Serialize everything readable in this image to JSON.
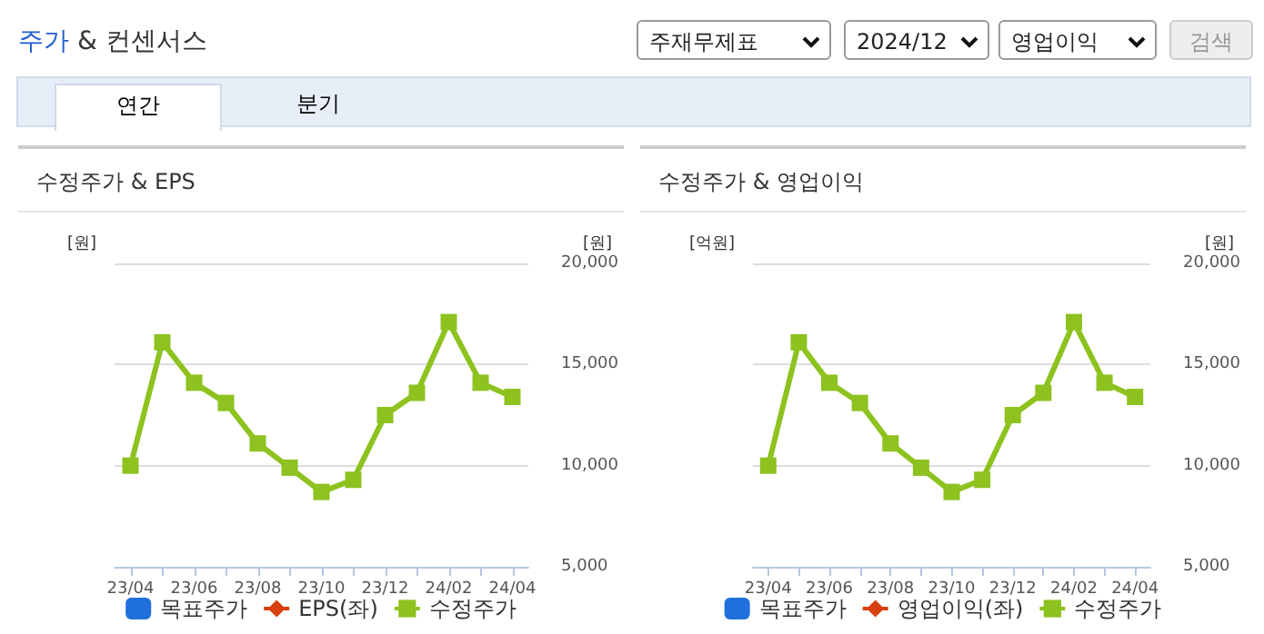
{
  "chart_data": [
    {
      "type": "other",
      "title": "주가 & 컨센서스",
      "annotations": [
        "주재무제표",
        "2024/12",
        "영업이익",
        "검색",
        "연간",
        "분기"
      ]
    },
    {
      "type": "line",
      "title": "수정주가 & EPS",
      "ylabel": "[원]",
      "y2label": "[원]",
      "categories": [
        "23/04",
        null,
        "23/06",
        null,
        "23/08",
        null,
        "23/10",
        null,
        "23/12",
        null,
        "24/02",
        null,
        "24/04"
      ],
      "y2lim": [
        5000,
        20000
      ],
      "y2ticks": [
        {
          "value": 5000,
          "label": "5,000"
        },
        {
          "value": 10000,
          "label": "10,000"
        },
        {
          "value": 15000,
          "label": "15,000"
        },
        {
          "value": 20000,
          "label": "20,000"
        }
      ],
      "grid": "y",
      "legend": "bottom",
      "series": [
        {
          "name": "목표주가",
          "type": "bar",
          "color": "#1f6fdc",
          "values": [
            null,
            null,
            null,
            null,
            null,
            null,
            null,
            null,
            null,
            null,
            null,
            null,
            null
          ]
        },
        {
          "name": "EPS(좌)",
          "type": "line",
          "marker": "diamond",
          "color": "#d9400f",
          "values": [
            null,
            null,
            null,
            null,
            null,
            null,
            null,
            null,
            null,
            null,
            null,
            null,
            null
          ]
        },
        {
          "name": "수정주가",
          "type": "line",
          "marker": "square",
          "axis": "y2",
          "color": "#8dc21f",
          "values": [
            10000,
            16100,
            14100,
            13100,
            11100,
            9900,
            8700,
            9300,
            12500,
            13600,
            17100,
            14100,
            13400
          ]
        }
      ]
    },
    {
      "type": "line",
      "title": "수정주가 & 영업이익",
      "ylabel": "[억원]",
      "y2label": "[원]",
      "categories": [
        "23/04",
        null,
        "23/06",
        null,
        "23/08",
        null,
        "23/10",
        null,
        "23/12",
        null,
        "24/02",
        null,
        "24/04"
      ],
      "y2lim": [
        5000,
        20000
      ],
      "y2ticks": [
        {
          "value": 5000,
          "label": "5,000"
        },
        {
          "value": 10000,
          "label": "10,000"
        },
        {
          "value": 15000,
          "label": "15,000"
        },
        {
          "value": 20000,
          "label": "20,000"
        }
      ],
      "grid": "y",
      "legend": "bottom",
      "series": [
        {
          "name": "목표주가",
          "type": "bar",
          "color": "#1f6fdc",
          "values": [
            null,
            null,
            null,
            null,
            null,
            null,
            null,
            null,
            null,
            null,
            null,
            null,
            null
          ]
        },
        {
          "name": "영업이익(좌)",
          "type": "line",
          "marker": "diamond",
          "color": "#d9400f",
          "values": [
            null,
            null,
            null,
            null,
            null,
            null,
            null,
            null,
            null,
            null,
            null,
            null,
            null
          ]
        },
        {
          "name": "수정주가",
          "type": "line",
          "marker": "square",
          "axis": "y2",
          "color": "#8dc21f",
          "values": [
            10000,
            16100,
            14100,
            13100,
            11100,
            9900,
            8700,
            9300,
            12500,
            13600,
            17100,
            14100,
            13400
          ]
        }
      ]
    }
  ]
}
